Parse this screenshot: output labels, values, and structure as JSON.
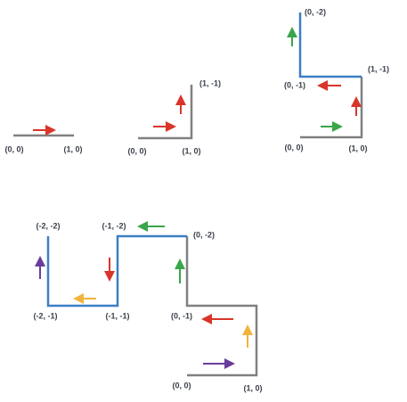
{
  "panels": [
    {
      "labels": [
        "(0, 0)",
        "(1, 0)"
      ]
    },
    {
      "labels": [
        "(0, 0)",
        "(1, 0)",
        "(1, -1)"
      ]
    },
    {
      "labels": [
        "(0, 0)",
        "(1, 0)",
        "(1, -1)",
        "(0, -1)",
        "(0, -2)"
      ]
    },
    {
      "labels": [
        "(0, 0)",
        "(1, 0)",
        "(0, -1)",
        "(0, -2)",
        "(-1, -2)",
        "(-1, -1)",
        "(-2, -1)",
        "(-2, -2)"
      ]
    }
  ]
}
